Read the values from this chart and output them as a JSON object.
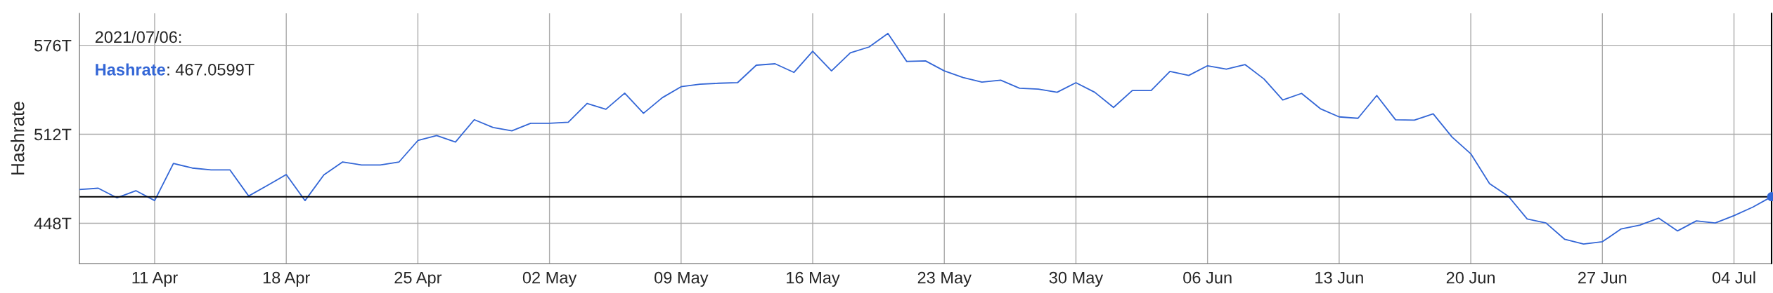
{
  "chart_data": {
    "type": "line",
    "ylabel": "Hashrate",
    "annotations": [
      "2021/07/06:",
      "Hashrate: 467.0599T"
    ],
    "xlim": [
      "2021-04-07",
      "2021-07-06"
    ],
    "ylim": [
      419,
      599
    ],
    "xticks": [
      {
        "value": "2021-04-11",
        "label": "11 Apr"
      },
      {
        "value": "2021-04-18",
        "label": "18 Apr"
      },
      {
        "value": "2021-04-25",
        "label": "25 Apr"
      },
      {
        "value": "2021-05-02",
        "label": "02 May"
      },
      {
        "value": "2021-05-09",
        "label": "09 May"
      },
      {
        "value": "2021-05-16",
        "label": "16 May"
      },
      {
        "value": "2021-05-23",
        "label": "23 May"
      },
      {
        "value": "2021-05-30",
        "label": "30 May"
      },
      {
        "value": "2021-06-06",
        "label": "06 Jun"
      },
      {
        "value": "2021-06-13",
        "label": "13 Jun"
      },
      {
        "value": "2021-06-20",
        "label": "20 Jun"
      },
      {
        "value": "2021-06-27",
        "label": "27 Jun"
      },
      {
        "value": "2021-07-04",
        "label": "04 Jul"
      }
    ],
    "yticks": [
      {
        "value": 448,
        "label": "448T"
      },
      {
        "value": 512,
        "label": "512T"
      },
      {
        "value": 576,
        "label": "576T"
      }
    ],
    "grid": true,
    "legend": false,
    "marker": "none",
    "line_style": "solid",
    "ref_lines": [
      {
        "axis": "y",
        "value": 467.0599,
        "label": null,
        "color": "#000000"
      },
      {
        "axis": "x",
        "value": "2021-07-06",
        "label": null,
        "color": "#000000"
      }
    ],
    "series": [
      {
        "color": "#3366d6",
        "x": [
          "2021-04-07",
          "2021-04-08",
          "2021-04-09",
          "2021-04-10",
          "2021-04-11",
          "2021-04-12",
          "2021-04-13",
          "2021-04-14",
          "2021-04-15",
          "2021-04-16",
          "2021-04-17",
          "2021-04-18",
          "2021-04-19",
          "2021-04-20",
          "2021-04-21",
          "2021-04-22",
          "2021-04-23",
          "2021-04-24",
          "2021-04-25",
          "2021-04-26",
          "2021-04-27",
          "2021-04-28",
          "2021-04-29",
          "2021-04-30",
          "2021-05-01",
          "2021-05-02",
          "2021-05-03",
          "2021-05-04",
          "2021-05-05",
          "2021-05-06",
          "2021-05-07",
          "2021-05-08",
          "2021-05-09",
          "2021-05-10",
          "2021-05-11",
          "2021-05-12",
          "2021-05-13",
          "2021-05-14",
          "2021-05-15",
          "2021-05-16",
          "2021-05-17",
          "2021-05-18",
          "2021-05-19",
          "2021-05-20",
          "2021-05-21",
          "2021-05-22",
          "2021-05-23",
          "2021-05-24",
          "2021-05-25",
          "2021-05-26",
          "2021-05-27",
          "2021-05-28",
          "2021-05-29",
          "2021-05-30",
          "2021-05-31",
          "2021-06-01",
          "2021-06-02",
          "2021-06-03",
          "2021-06-04",
          "2021-06-05",
          "2021-06-06",
          "2021-06-07",
          "2021-06-08",
          "2021-06-09",
          "2021-06-10",
          "2021-06-11",
          "2021-06-12",
          "2021-06-13",
          "2021-06-14",
          "2021-06-15",
          "2021-06-16",
          "2021-06-17",
          "2021-06-18",
          "2021-06-19",
          "2021-06-20",
          "2021-06-21",
          "2021-06-22",
          "2021-06-23",
          "2021-06-24",
          "2021-06-25",
          "2021-06-26",
          "2021-06-27",
          "2021-06-28",
          "2021-06-29",
          "2021-06-30",
          "2021-07-01",
          "2021-07-02",
          "2021-07-03",
          "2021-07-04",
          "2021-07-05",
          "2021-07-06"
        ],
        "values": [
          472.3,
          473.2,
          466.3,
          471.4,
          464.3,
          491.0,
          487.7,
          486.4,
          486.4,
          467.6,
          475.2,
          483.0,
          464.3,
          482.8,
          492.1,
          489.9,
          489.9,
          492.1,
          507.5,
          511.1,
          506.4,
          522.5,
          516.9,
          514.5,
          519.9,
          519.9,
          520.7,
          534.2,
          530.0,
          541.6,
          527.1,
          538.3,
          546.2,
          548.0,
          548.7,
          549.1,
          561.7,
          562.7,
          556.5,
          571.7,
          557.6,
          570.6,
          574.8,
          584.5,
          564.4,
          564.8,
          557.6,
          552.8,
          549.5,
          550.9,
          545.1,
          544.5,
          542.2,
          549.1,
          542.2,
          531.3,
          543.5,
          543.5,
          557.2,
          554.3,
          561.3,
          558.8,
          562.1,
          551.8,
          536.7,
          541.4,
          530.4,
          524.5,
          523.5,
          539.9,
          522.4,
          522.2,
          526.7,
          510.1,
          498.0,
          476.5,
          467.4,
          451.1,
          448.2,
          436.4,
          433.1,
          434.7,
          443.9,
          446.7,
          451.7,
          442.5,
          449.7,
          448.2,
          453.5,
          459.6,
          467.1
        ]
      },
      {
        "color": "#3366d6",
        "type": "scatter",
        "marker": "circle",
        "x": [
          "2021-07-06"
        ],
        "values": [
          467.1
        ]
      }
    ]
  }
}
